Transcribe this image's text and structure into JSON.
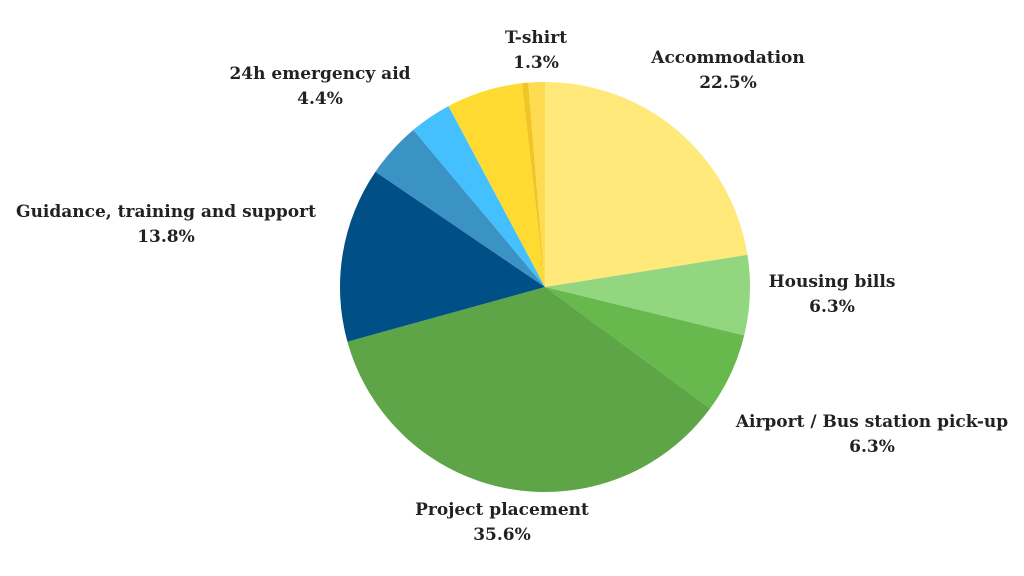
{
  "chart_data": {
    "type": "pie",
    "title": "",
    "start_angle": "12 o'clock",
    "direction": "clockwise",
    "slices": [
      {
        "label": "Accommodation",
        "value": 22.5,
        "value_label": "22.5%",
        "color": "#FFE97A"
      },
      {
        "label": "Housing bills",
        "value": 6.3,
        "value_label": "6.3%",
        "color": "#93D680"
      },
      {
        "label": "Airport / Bus station pick-up",
        "value": 6.3,
        "value_label": "6.3%",
        "color": "#67B84D"
      },
      {
        "label": "Project placement",
        "value": 35.6,
        "value_label": "35.6%",
        "color": "#5DA547"
      },
      {
        "label": "Guidance, training and support",
        "value": 13.8,
        "value_label": "13.8%",
        "color": "#004F87"
      },
      {
        "label": "24h emergency aid",
        "value": 4.4,
        "value_label": "4.4%",
        "color": "#3A93C3"
      },
      {
        "label": "",
        "value": 3.3,
        "value_label": "",
        "color": "#45C0FF"
      },
      {
        "label": "",
        "value": 6.0,
        "value_label": "",
        "color": "#FFDA30"
      },
      {
        "label": "",
        "value": 0.5,
        "value_label": "",
        "color": "#F2C526"
      },
      {
        "label": "T-shirt",
        "value": 1.3,
        "value_label": "1.3%",
        "color": "#FFDB52"
      }
    ]
  }
}
